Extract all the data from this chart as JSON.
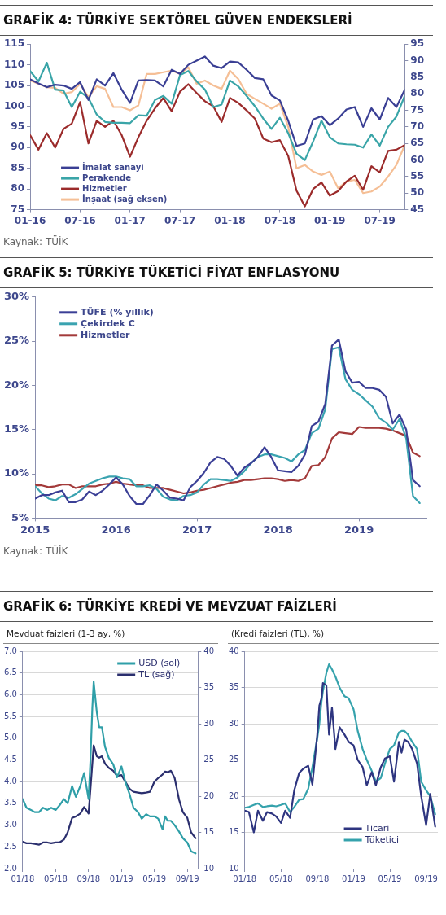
{
  "chart_data": [
    {
      "type": "line",
      "title": "GRAFİK 4: TÜRKİYE SEKTÖREL GÜVEN ENDEKSLERİ",
      "annotations": [
        "Kaynak: TÜİK"
      ],
      "x": [
        "2016-01",
        "2016-02",
        "2016-03",
        "2016-04",
        "2016-05",
        "2016-06",
        "2016-07",
        "2016-08",
        "2016-09",
        "2016-10",
        "2016-11",
        "2016-12",
        "2017-01",
        "2017-02",
        "2017-03",
        "2017-04",
        "2017-05",
        "2017-06",
        "2017-07",
        "2017-08",
        "2017-09",
        "2017-10",
        "2017-11",
        "2017-12",
        "2018-01",
        "2018-02",
        "2018-03",
        "2018-04",
        "2018-05",
        "2018-06",
        "2018-07",
        "2018-08",
        "2018-09",
        "2018-10",
        "2018-11",
        "2018-12",
        "2019-01",
        "2019-02",
        "2019-03",
        "2019-04",
        "2019-05",
        "2019-06",
        "2019-07",
        "2019-08",
        "2019-09",
        "2019-10"
      ],
      "series": [
        {
          "name": "İmalat sanayi",
          "color": "#3a3f94",
          "values": [
            106.5,
            105.5,
            104.6,
            105.2,
            105,
            104.2,
            105.8,
            101.5,
            106.5,
            105,
            108,
            104,
            100.8,
            106.2,
            106.3,
            106.2,
            104.8,
            108.8,
            107.8,
            110,
            111,
            112,
            109.8,
            109.2,
            110.8,
            110.6,
            108.8,
            106.8,
            106.5,
            102.6,
            101.4,
            96.5,
            90.4,
            91,
            96.8,
            97.6,
            95.4,
            97,
            99.2,
            99.8,
            95,
            99.5,
            96.8,
            102,
            99.8,
            104
          ]
        },
        {
          "name": "Perakende",
          "color": "#3aa5a8",
          "values": [
            108.5,
            106,
            110.5,
            104,
            103.8,
            99.8,
            103.5,
            102,
            98,
            96.2,
            96,
            96,
            95.9,
            97.8,
            97.7,
            101.5,
            102.5,
            100.6,
            107.5,
            108.5,
            106,
            104,
            99.8,
            100.4,
            106.2,
            104.8,
            102.5,
            100,
            97,
            94.5,
            97.2,
            93.5,
            88.5,
            87,
            91.5,
            96.5,
            92.5,
            91,
            90.8,
            90.7,
            90,
            93.2,
            90.5,
            95,
            97.5,
            102.5
          ]
        },
        {
          "name": "Hizmetler",
          "color": "#9b2b2b",
          "values": [
            93,
            89.5,
            93.5,
            90,
            94.5,
            95.8,
            101,
            91,
            96.5,
            95,
            96.5,
            93,
            87.8,
            92.5,
            96.5,
            99.5,
            102,
            98.8,
            103.5,
            105.3,
            103.2,
            101.2,
            100,
            96.2,
            102,
            100.8,
            99,
            97,
            92.2,
            91.3,
            91.8,
            88,
            79.6,
            75.8,
            80,
            81.6,
            78.4,
            79.5,
            81.8,
            83.2,
            79.8,
            85.5,
            84,
            89.2,
            89.5,
            90.6
          ]
        },
        {
          "name": "İnşaat (sağ eksen)",
          "color": "#f5bf96",
          "axis": "y2",
          "values": [
            84,
            83,
            82,
            81.8,
            80,
            80.5,
            83,
            79,
            82.3,
            81.5,
            76,
            76,
            75,
            76.5,
            86,
            86,
            86.5,
            87,
            86,
            88,
            83,
            84,
            82.5,
            81.5,
            87,
            84.5,
            80,
            78.5,
            77,
            75.5,
            77,
            70,
            57.5,
            58.5,
            56.5,
            55.5,
            56.5,
            51.5,
            53.5,
            54,
            50,
            50.5,
            52,
            55,
            58.5,
            64.5
          ]
        }
      ],
      "xlim": [
        "2016-01",
        "2019-10"
      ],
      "xticks": [
        {
          "value": "2016-01",
          "label": "01-16"
        },
        {
          "value": "2016-07",
          "label": "07-16"
        },
        {
          "value": "2017-01",
          "label": "01-17"
        },
        {
          "value": "2017-07",
          "label": "07-17"
        },
        {
          "value": "2018-01",
          "label": "01-18"
        },
        {
          "value": "2018-07",
          "label": "07-18"
        },
        {
          "value": "2019-01",
          "label": "01-19"
        },
        {
          "value": "2019-07",
          "label": "07-19"
        }
      ],
      "ylim": [
        75,
        115
      ],
      "yticks": [
        75,
        80,
        85,
        90,
        95,
        100,
        105,
        110,
        115
      ],
      "y2lim": [
        45,
        95
      ],
      "y2ticks": [
        45,
        50,
        55,
        60,
        65,
        70,
        75,
        80,
        85,
        90,
        95
      ],
      "legend": "bottom left",
      "grid": false
    },
    {
      "type": "line",
      "title": "GRAFİK 5: TÜRKİYE TÜKETİCİ FİYAT ENFLASYONU",
      "annotations": [
        "Kaynak: TÜİK"
      ],
      "x": [
        "2015-01",
        "2015-02",
        "2015-03",
        "2015-04",
        "2015-05",
        "2015-06",
        "2015-07",
        "2015-08",
        "2015-09",
        "2015-10",
        "2015-11",
        "2015-12",
        "2016-01",
        "2016-02",
        "2016-03",
        "2016-04",
        "2016-05",
        "2016-06",
        "2016-07",
        "2016-08",
        "2016-09",
        "2016-10",
        "2016-11",
        "2016-12",
        "2017-01",
        "2017-02",
        "2017-03",
        "2017-04",
        "2017-05",
        "2017-06",
        "2017-07",
        "2017-08",
        "2017-09",
        "2017-10",
        "2017-11",
        "2017-12",
        "2018-01",
        "2018-02",
        "2018-03",
        "2018-04",
        "2018-05",
        "2018-06",
        "2018-07",
        "2018-08",
        "2018-09",
        "2018-10",
        "2018-11",
        "2018-12",
        "2019-01",
        "2019-02",
        "2019-03",
        "2019-04",
        "2019-05",
        "2019-06",
        "2019-07",
        "2019-08",
        "2019-09",
        "2019-10"
      ],
      "series": [
        {
          "name": "TÜFE (% yıllık)",
          "color": "#3b3f96",
          "values": [
            7.2,
            7.6,
            7.6,
            7.9,
            8.1,
            6.8,
            6.8,
            7.1,
            8.0,
            7.6,
            8.1,
            8.8,
            9.6,
            8.8,
            7.5,
            6.6,
            6.6,
            7.6,
            8.8,
            8.1,
            7.3,
            7.2,
            7.0,
            8.5,
            9.2,
            10.1,
            11.3,
            11.9,
            11.7,
            10.9,
            9.8,
            10.7,
            11.2,
            11.9,
            13.0,
            11.9,
            10.4,
            10.3,
            10.2,
            10.9,
            12.2,
            15.4,
            15.9,
            17.9,
            24.5,
            25.2,
            21.6,
            20.3,
            20.4,
            19.7,
            19.7,
            19.5,
            18.7,
            15.7,
            16.7,
            15.0,
            9.3,
            8.6
          ]
        },
        {
          "name": "Çekirdek C",
          "color": "#3aa3b0",
          "values": [
            8.6,
            7.8,
            7.2,
            7.0,
            7.5,
            7.3,
            7.7,
            8.3,
            8.9,
            9.2,
            9.5,
            9.7,
            9.7,
            9.5,
            9.4,
            8.6,
            8.6,
            8.7,
            8.3,
            7.4,
            7.1,
            7.0,
            7.5,
            7.6,
            7.9,
            8.8,
            9.4,
            9.4,
            9.3,
            9.2,
            9.6,
            10.3,
            11.2,
            11.9,
            12.2,
            12.2,
            12.0,
            11.8,
            11.4,
            12.2,
            12.7,
            14.6,
            15.1,
            17.3,
            24.1,
            24.3,
            20.7,
            19.5,
            19.0,
            18.3,
            17.6,
            16.3,
            15.8,
            15.0,
            16.2,
            14.0,
            7.5,
            6.7
          ]
        },
        {
          "name": "Hizmetler",
          "color": "#a33a3a",
          "values": [
            8.7,
            8.7,
            8.5,
            8.6,
            8.8,
            8.8,
            8.4,
            8.6,
            8.6,
            8.6,
            8.8,
            8.9,
            9.1,
            8.9,
            8.8,
            8.7,
            8.7,
            8.4,
            8.4,
            8.4,
            8.2,
            8.0,
            7.8,
            7.9,
            8.1,
            8.2,
            8.4,
            8.6,
            8.8,
            9.0,
            9.1,
            9.3,
            9.3,
            9.4,
            9.5,
            9.5,
            9.4,
            9.2,
            9.3,
            9.2,
            9.5,
            10.9,
            11.0,
            11.9,
            14.0,
            14.7,
            14.6,
            14.5,
            15.3,
            15.2,
            15.2,
            15.2,
            15.1,
            14.9,
            14.6,
            14.3,
            12.4,
            12.0
          ]
        }
      ],
      "xlim": [
        "2015-01",
        "2019-11"
      ],
      "xticks": [
        {
          "value": "2015-01",
          "label": "2015"
        },
        {
          "value": "2016-01",
          "label": "2016"
        },
        {
          "value": "2017-01",
          "label": "2017"
        },
        {
          "value": "2018-01",
          "label": "2018"
        },
        {
          "value": "2019-01",
          "label": "2019"
        }
      ],
      "ylim": [
        5,
        30
      ],
      "yticks": [
        {
          "value": 5,
          "label": "5%"
        },
        {
          "value": 10,
          "label": "10%"
        },
        {
          "value": 15,
          "label": "15%"
        },
        {
          "value": 20,
          "label": "20%"
        },
        {
          "value": 25,
          "label": "25%"
        },
        {
          "value": 30,
          "label": "30%"
        }
      ],
      "legend": "top left",
      "grid": false
    },
    {
      "type": "line",
      "title": "GRAFİK 6: TÜRKİYE KREDİ VE MEVZUAT FAİZLERİ",
      "subtitle": "Mevduat faizleri (1-3 ay, %)",
      "x": [
        "2018-01-01",
        "2018-01-15",
        "2018-02-01",
        "2018-02-15",
        "2018-03-01",
        "2018-03-15",
        "2018-04-01",
        "2018-04-15",
        "2018-05-01",
        "2018-05-15",
        "2018-06-01",
        "2018-06-15",
        "2018-07-01",
        "2018-07-15",
        "2018-08-01",
        "2018-08-15",
        "2018-09-01",
        "2018-09-08",
        "2018-09-15",
        "2018-09-20",
        "2018-10-01",
        "2018-10-10",
        "2018-10-20",
        "2018-11-01",
        "2018-11-15",
        "2018-12-01",
        "2018-12-15",
        "2019-01-01",
        "2019-01-15",
        "2019-02-01",
        "2019-02-15",
        "2019-03-01",
        "2019-03-15",
        "2019-04-01",
        "2019-04-15",
        "2019-05-01",
        "2019-05-15",
        "2019-06-01",
        "2019-06-10",
        "2019-06-20",
        "2019-07-01",
        "2019-07-15",
        "2019-08-01",
        "2019-08-15",
        "2019-09-01",
        "2019-09-15",
        "2019-10-01"
      ],
      "series": [
        {
          "name": "USD (sol)",
          "color": "#2f9fa8",
          "values": [
            3.6,
            3.4,
            3.35,
            3.3,
            3.3,
            3.4,
            3.35,
            3.4,
            3.35,
            3.45,
            3.6,
            3.5,
            3.9,
            3.65,
            3.9,
            4.2,
            3.6,
            4.5,
            5.7,
            6.3,
            5.6,
            5.25,
            5.25,
            4.8,
            4.55,
            4.4,
            4.1,
            4.35,
            4.0,
            3.7,
            3.4,
            3.3,
            3.15,
            3.25,
            3.2,
            3.2,
            3.15,
            2.9,
            3.2,
            3.1,
            3.1,
            3.0,
            2.85,
            2.7,
            2.6,
            2.4,
            2.35
          ]
        },
        {
          "name": "TL (sağ)",
          "color": "#2b2f6e",
          "axis": "y2",
          "values": [
            13.7,
            13.5,
            13.5,
            13.4,
            13.3,
            13.6,
            13.6,
            13.5,
            13.6,
            13.6,
            14.0,
            15.0,
            17.0,
            17.2,
            17.6,
            18.5,
            17.6,
            21.0,
            24.5,
            27.0,
            25.5,
            25.3,
            25.5,
            24.5,
            23.9,
            23.5,
            22.8,
            22.9,
            22.0,
            21.0,
            20.6,
            20.5,
            20.4,
            20.5,
            20.6,
            22.0,
            22.5,
            23.0,
            23.4,
            23.3,
            23.5,
            22.5,
            19.5,
            17.8,
            17.0,
            15.0,
            14.2
          ]
        }
      ],
      "xlim": [
        "2018-01-01",
        "2019-10-10"
      ],
      "xticks": [
        {
          "value": "2018-01-01",
          "label": "01/18"
        },
        {
          "value": "2018-05-01",
          "label": "05/18"
        },
        {
          "value": "2018-09-01",
          "label": "09/18"
        },
        {
          "value": "2019-01-01",
          "label": "01/19"
        },
        {
          "value": "2019-05-01",
          "label": "05/19"
        },
        {
          "value": "2019-09-01",
          "label": "09/19"
        }
      ],
      "ylim": [
        2,
        7
      ],
      "yticks": [
        {
          "value": 2,
          "label": "2.0"
        },
        2.5,
        {
          "value": 3,
          "label": "3.0"
        },
        3.5,
        {
          "value": 4,
          "label": "4.0"
        },
        4.5,
        {
          "value": 5,
          "label": "5.0"
        },
        5.5,
        {
          "value": 6,
          "label": "6.0"
        },
        6.5,
        {
          "value": 7,
          "label": "7.0"
        }
      ],
      "y2lim": [
        10,
        40
      ],
      "y2ticks": [
        10,
        15,
        20,
        25,
        30,
        35,
        40
      ],
      "legend": "top right",
      "grid": "y"
    },
    {
      "type": "line",
      "subtitle": "(Kredi faizleri (TL), %)",
      "x": [
        "2018-01-01",
        "2018-01-15",
        "2018-02-01",
        "2018-02-15",
        "2018-03-01",
        "2018-03-15",
        "2018-04-01",
        "2018-04-15",
        "2018-05-01",
        "2018-05-15",
        "2018-06-01",
        "2018-06-15",
        "2018-07-01",
        "2018-07-15",
        "2018-08-01",
        "2018-08-15",
        "2018-09-01",
        "2018-09-08",
        "2018-09-15",
        "2018-09-20",
        "2018-10-01",
        "2018-10-10",
        "2018-10-20",
        "2018-11-01",
        "2018-11-15",
        "2018-12-01",
        "2018-12-15",
        "2019-01-01",
        "2019-01-15",
        "2019-02-01",
        "2019-02-15",
        "2019-03-01",
        "2019-03-15",
        "2019-04-01",
        "2019-04-15",
        "2019-05-01",
        "2019-05-15",
        "2019-06-01",
        "2019-06-10",
        "2019-06-20",
        "2019-07-01",
        "2019-07-15",
        "2019-08-01",
        "2019-08-15",
        "2019-09-01",
        "2019-09-15",
        "2019-10-01"
      ],
      "series": [
        {
          "name": "Ticari",
          "color": "#2e3580",
          "values": [
            18,
            17.8,
            15.0,
            18.0,
            16.6,
            17.8,
            17.6,
            17.2,
            16.3,
            18.0,
            17.0,
            20.8,
            23.2,
            23.8,
            24.2,
            21.6,
            28.5,
            32.5,
            33.5,
            35.6,
            35.3,
            28.5,
            32.2,
            26.5,
            29.5,
            28.5,
            27.5,
            27.0,
            25.0,
            24.0,
            21.5,
            23.3,
            21.5,
            24.0,
            25.2,
            25.5,
            22.0,
            27.5,
            26.0,
            27.8,
            27.5,
            26.5,
            24.5,
            20.0,
            16.0,
            20.3,
            15.8
          ]
        },
        {
          "name": "Tüketici",
          "color": "#35a2ac",
          "values": [
            18.4,
            18.5,
            18.8,
            19.0,
            18.5,
            18.6,
            18.7,
            18.6,
            18.8,
            19.0,
            17.8,
            18.5,
            19.5,
            19.6,
            21.0,
            24.0,
            28.0,
            30.0,
            33.0,
            34.5,
            37.0,
            38.2,
            37.5,
            36.5,
            35.0,
            33.8,
            33.5,
            32.0,
            29.0,
            26.5,
            25.0,
            23.5,
            22.0,
            22.5,
            24.5,
            26.5,
            27.0,
            28.8,
            29.0,
            29.0,
            28.5,
            27.5,
            26.5,
            22.0,
            20.8,
            20.0,
            17.5
          ]
        }
      ],
      "xlim": [
        "2018-01-01",
        "2019-10-10"
      ],
      "xticks": [
        {
          "value": "2018-01-01",
          "label": "01/18"
        },
        {
          "value": "2018-05-01",
          "label": "05/18"
        },
        {
          "value": "2018-09-01",
          "label": "09/18"
        },
        {
          "value": "2019-01-01",
          "label": "01/19"
        },
        {
          "value": "2019-05-01",
          "label": "05/19"
        },
        {
          "value": "2019-09-01",
          "label": "09/19"
        }
      ],
      "ylim": [
        10,
        40
      ],
      "yticks": [
        10,
        15,
        20,
        25,
        30,
        35,
        40
      ],
      "legend": "bottom right",
      "grid": "y"
    }
  ]
}
